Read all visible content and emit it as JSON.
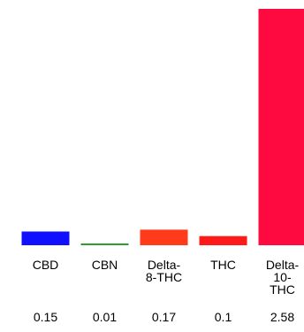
{
  "chart_data": {
    "type": "bar",
    "title": "",
    "xlabel": "",
    "ylabel": "",
    "categories": [
      "CBD",
      "CBN",
      "Delta-8-THC",
      "THC",
      "Delta-10-THC"
    ],
    "category_label_lines": [
      [
        "CBD"
      ],
      [
        "CBN"
      ],
      [
        "Delta-",
        "8-THC"
      ],
      [
        "THC"
      ],
      [
        "Delta-",
        "10-",
        "THC"
      ]
    ],
    "value_labels": [
      "0.15",
      "0.01",
      "0.17",
      "0.1",
      "2.58"
    ],
    "values": [
      0.15,
      0.01,
      0.17,
      0.1,
      2.58
    ],
    "colors": [
      "#1010ff",
      "#2ca02c",
      "#ff3b1a",
      "#ff1a1a",
      "#ff0a40"
    ],
    "ylim": [
      0,
      2.58
    ],
    "grid": false,
    "legend": "none"
  }
}
